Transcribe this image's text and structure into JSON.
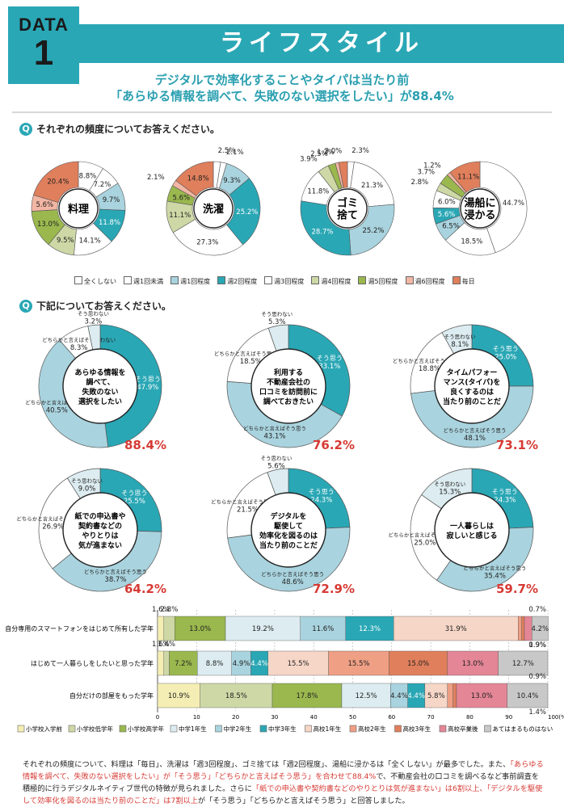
{
  "header": {
    "tag_top": "DATA",
    "tag_num": "1",
    "title": "ライフスタイル",
    "sub1": "デジタルで効率化することやタイパは当たり前",
    "sub2": "「あらゆる情報を調べて、失敗のない選択をしたい」が88.4%"
  },
  "q1": {
    "mark": "Q",
    "text": "それぞれの頻度についてお答えください。"
  },
  "q2": {
    "mark": "Q",
    "text": "下記についてお答えください。"
  },
  "colors": {
    "accent": "#2aa7b5",
    "red": "#d63a34"
  },
  "freq_legend": [
    "全くしない",
    "週1回未満",
    "週1回程度",
    "週2回程度",
    "週3回程度",
    "週4回程度",
    "週5回程度",
    "週6回程度",
    "毎日"
  ],
  "freq_colors": [
    "#ffffff",
    "#ffffff",
    "#a9d3de",
    "#2aa7b5",
    "#ffffff",
    "#cdd8a6",
    "#9ab84e",
    "#f2b6a4",
    "#e07f5c"
  ],
  "chart_data": [
    {
      "type": "pie",
      "center_label": "料理",
      "values": [
        8.8,
        7.2,
        9.7,
        11.8,
        14.1,
        9.5,
        13.0,
        5.6,
        20.4
      ],
      "labels": [
        "8.8%",
        "7.2%",
        "9.7%",
        "11.8%",
        "14.1%",
        "9.5%",
        "13.0%",
        "5.6%",
        "20.4%"
      ]
    },
    {
      "type": "pie",
      "center_label": "洗濯",
      "values": [
        2.5,
        2.1,
        9.3,
        25.2,
        27.3,
        11.1,
        5.6,
        2.1,
        14.8
      ],
      "labels": [
        "2.5%",
        "2.1%",
        "9.3%",
        "25.2%",
        "27.3%",
        "11.1%",
        "5.6%",
        "2.1%",
        "14.8%"
      ]
    },
    {
      "type": "pie",
      "center_label": "ゴミ捨て",
      "values": [
        2.3,
        21.3,
        25.2,
        28.7,
        11.8,
        3.9,
        2.5,
        1.2,
        3.0
      ],
      "labels": [
        "2.3%",
        "21.3%",
        "25.2%",
        "28.7%",
        "11.8%",
        "3.9%",
        "2.5%",
        "1.2%",
        "3.0%"
      ]
    },
    {
      "type": "pie",
      "center_label": "湯船に浸かる",
      "values": [
        44.7,
        18.5,
        6.5,
        5.6,
        6.0,
        2.8,
        3.7,
        1.2,
        11.1
      ],
      "labels": [
        "44.7%",
        "18.5%",
        "6.5%",
        "5.6%",
        "6.0%",
        "2.8%",
        "3.7%",
        "1.2%",
        "11.1%"
      ]
    },
    {
      "type": "pie",
      "center_label": "あらゆる情報を調べて、失敗のない選択をしたい",
      "total": "88.4%",
      "values": [
        47.9,
        40.5,
        8.3,
        3.2
      ],
      "labels": [
        "そう思う 47.9%",
        "どちらかと言えばそう思う 40.5%",
        "どちらかと言えばそう思わない 8.3%",
        "そう思わない 3.2%"
      ]
    },
    {
      "type": "pie",
      "center_label": "利用する不動産会社の口コミを訪問前に調べておきたい",
      "total": "76.2%",
      "values": [
        33.1,
        43.1,
        18.5,
        5.3
      ],
      "labels": [
        "そう思う 33.1%",
        "どちらかと言えばそう思う 43.1%",
        "どちらかと言えばそう思わない 18.5%",
        "そう思わない 5.3%"
      ]
    },
    {
      "type": "pie",
      "center_label": "タイムパフォーマンス(タイパ)を良くするのは当たり前のことだ",
      "total": "73.1%",
      "values": [
        25.0,
        48.1,
        18.8,
        8.1
      ],
      "labels": [
        "そう思う 25.0%",
        "どちらかと言えばそう思う 48.1%",
        "どちらかと言えばそう思わない 18.8%",
        "そう思わない 8.1%"
      ]
    },
    {
      "type": "pie",
      "center_label": "紙での申込書や契約書などのやりとりは気が進まない",
      "total": "64.2%",
      "values": [
        25.5,
        38.7,
        26.9,
        9.0
      ],
      "labels": [
        "そう思う 25.5%",
        "どちらかと言えばそう思う 38.7%",
        "どちらかと言えばそう思わない 26.9%",
        "そう思わない 9.0%"
      ]
    },
    {
      "type": "pie",
      "center_label": "デジタルを駆使して効率化を図るのは当たり前のことだ",
      "total": "72.9%",
      "values": [
        24.3,
        48.6,
        21.5,
        5.6
      ],
      "labels": [
        "そう思う 24.3%",
        "どちらかと言えばそう思う 48.6%",
        "どちらかと言えばそう思わない 21.5%",
        "そう思わない 5.6%"
      ]
    },
    {
      "type": "pie",
      "center_label": "一人暮らしは寂しいと感じる",
      "total": "59.7%",
      "values": [
        24.3,
        35.4,
        25.0,
        15.3
      ],
      "labels": [
        "そう思う 24.3%",
        "どちらかと言えばそう思う 35.4%",
        "どちらかと言えばそう思わない 25.0%",
        "そう思わない 15.3%"
      ]
    },
    {
      "type": "bar",
      "orientation": "horizontal-stacked",
      "categories": [
        "自分専用のスマートフォンをはじめて所有した学年",
        "はじめて一人暮らしをしたいと思った学年",
        "自分だけの部屋をもった学年"
      ],
      "series_names": [
        "小学校入学前",
        "小学校低学年",
        "小学校高学年",
        "中学1年生",
        "中学2年生",
        "中学3年生",
        "高校1年生",
        "高校2年生",
        "高校3年生",
        "高校卒業後",
        "あてはまるものはない"
      ],
      "values": [
        [
          1.6,
          2.8,
          13.0,
          19.2,
          11.6,
          12.3,
          31.9,
          0.9,
          0.7,
          1.9,
          4.2
        ],
        [
          1.6,
          1.4,
          7.2,
          8.8,
          4.9,
          4.4,
          15.5,
          15.5,
          15.0,
          13.0,
          12.7
        ],
        [
          10.9,
          18.5,
          17.8,
          12.5,
          4.4,
          4.4,
          5.8,
          1.4,
          0.9,
          13.0,
          10.4
        ]
      ],
      "xticks": [
        "0",
        "10",
        "20",
        "30",
        "40",
        "50",
        "60",
        "70",
        "80",
        "90",
        "100(%)"
      ],
      "xlim": [
        0,
        100
      ]
    }
  ],
  "bar_colors": [
    "#f4eeb4",
    "#cdd8a6",
    "#9ab84e",
    "#dcecf0",
    "#a9d3de",
    "#2aa7b5",
    "#f6d6c7",
    "#ef9f84",
    "#e07f5c",
    "#e48696",
    "#c8c8c8"
  ],
  "note": [
    {
      "t": "それぞれの頻度について、料理は「毎日」、洗濯は「週3回程度」、ゴミ捨ては「週2回程度」、湯船に浸かるは「全くしない」が最多でした。また、"
    },
    {
      "t": "「あらゆる情報を調べて、失敗のない選択をしたい」が「そう思う」「どちらかと言えばそう思う」を合わせて88.4%",
      "r": true
    },
    {
      "t": "で、不動産会社の口コミを調べるなど事前調査を積極的に行うデジタルネイティブ世代の特徴が見られました。さらに"
    },
    {
      "t": "「紙での申込書や契約書などのやりとりは気が進まない」は6割以上、「デジタルを駆使して効率化を図るのは当たり前のことだ」は7割以上",
      "r": true
    },
    {
      "t": "が「そう思う」「どちらかと言えばそう思う」と回答しました。"
    }
  ]
}
